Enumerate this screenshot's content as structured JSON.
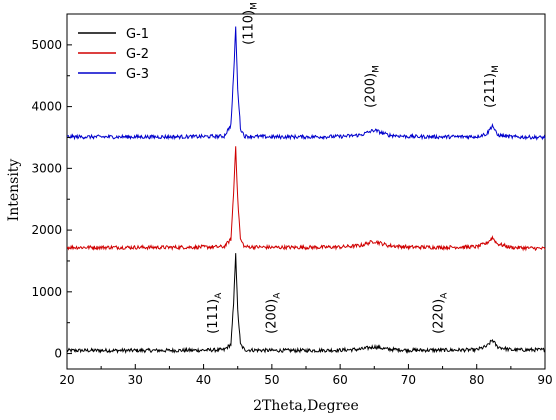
{
  "chart_data": {
    "type": "line",
    "title": "",
    "xlabel": "2Theta,Degree",
    "ylabel": "Intensity",
    "xlim": [
      20,
      90
    ],
    "ylim": [
      -250,
      5500
    ],
    "xticks": [
      20,
      30,
      40,
      50,
      60,
      70,
      80,
      90
    ],
    "yticks": [
      0,
      1000,
      2000,
      3000,
      4000,
      5000
    ],
    "grid": false,
    "legend_position": "top-left",
    "series": [
      {
        "name": "G-1",
        "color": "#000000",
        "x": [
          20,
          25,
          30,
          35,
          40,
          43,
          44.0,
          44.4,
          44.7,
          45.0,
          45.4,
          46,
          50,
          55,
          60,
          63,
          65,
          67,
          70,
          75,
          80,
          81.5,
          82.3,
          83,
          85,
          90
        ],
        "y": [
          50,
          50,
          50,
          50,
          55,
          60,
          150,
          800,
          1650,
          700,
          150,
          60,
          50,
          50,
          55,
          70,
          110,
          70,
          55,
          55,
          60,
          120,
          220,
          110,
          60,
          60
        ]
      },
      {
        "name": "G-2",
        "color": "#d00000",
        "x": [
          20,
          25,
          30,
          35,
          40,
          43,
          44.0,
          44.4,
          44.7,
          45.0,
          45.4,
          46,
          50,
          55,
          60,
          63,
          65,
          67,
          70,
          75,
          80,
          81.5,
          82.3,
          83,
          85,
          90
        ],
        "y": [
          1720,
          1720,
          1720,
          1720,
          1725,
          1730,
          1850,
          2600,
          3380,
          2500,
          1850,
          1730,
          1720,
          1720,
          1725,
          1750,
          1820,
          1750,
          1725,
          1720,
          1730,
          1790,
          1880,
          1780,
          1720,
          1700
        ]
      },
      {
        "name": "G-3",
        "color": "#0000cc",
        "x": [
          20,
          25,
          30,
          35,
          40,
          43,
          44.0,
          44.4,
          44.7,
          45.0,
          45.4,
          46,
          50,
          55,
          60,
          63,
          65,
          67,
          70,
          75,
          80,
          81.5,
          82.3,
          83,
          85,
          90
        ],
        "y": [
          3510,
          3510,
          3510,
          3510,
          3515,
          3520,
          3700,
          4500,
          5300,
          4300,
          3650,
          3520,
          3510,
          3510,
          3515,
          3540,
          3620,
          3540,
          3515,
          3510,
          3515,
          3560,
          3700,
          3540,
          3510,
          3500
        ]
      }
    ],
    "annotations": [
      {
        "main": "(110)",
        "sub": "M",
        "x": 47.2,
        "y": 5000
      },
      {
        "main": "(200)",
        "sub": "M",
        "x": 65.0,
        "y": 3980
      },
      {
        "main": "(211)",
        "sub": "M",
        "x": 82.5,
        "y": 3980
      },
      {
        "main": "(111)",
        "sub": "A",
        "x": 42.0,
        "y": 320
      },
      {
        "main": "(200)",
        "sub": "A",
        "x": 50.5,
        "y": 320
      },
      {
        "main": "(220)",
        "sub": "A",
        "x": 75.0,
        "y": 320
      }
    ]
  }
}
